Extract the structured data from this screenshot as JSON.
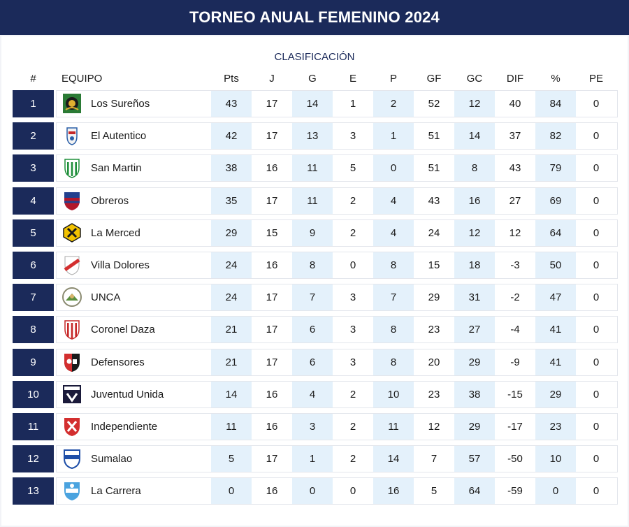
{
  "title": "TORNEO ANUAL FEMENINO 2024",
  "subtitle": "CLASIFICACIÓN",
  "columns": [
    "#",
    "EQUIPO",
    "Pts",
    "J",
    "G",
    "E",
    "P",
    "GF",
    "GC",
    "DIF",
    "%",
    "PE"
  ],
  "colors": {
    "navy": "#1b2a5a",
    "shade": "#e4f1fb",
    "border": "#e3e6ec"
  },
  "teams": [
    {
      "pos": "1",
      "name": "Los Sureños",
      "crest": "los-surenos-crest-icon",
      "pts": "43",
      "j": "17",
      "g": "14",
      "e": "1",
      "p": "2",
      "gf": "52",
      "gc": "12",
      "dif": "40",
      "pct": "84",
      "pe": "0"
    },
    {
      "pos": "2",
      "name": "El Autentico",
      "crest": "el-autentico-crest-icon",
      "pts": "42",
      "j": "17",
      "g": "13",
      "e": "3",
      "p": "1",
      "gf": "51",
      "gc": "14",
      "dif": "37",
      "pct": "82",
      "pe": "0"
    },
    {
      "pos": "3",
      "name": "San Martin",
      "crest": "san-martin-crest-icon",
      "pts": "38",
      "j": "16",
      "g": "11",
      "e": "5",
      "p": "0",
      "gf": "51",
      "gc": "8",
      "dif": "43",
      "pct": "79",
      "pe": "0"
    },
    {
      "pos": "4",
      "name": "Obreros",
      "crest": "obreros-crest-icon",
      "pts": "35",
      "j": "17",
      "g": "11",
      "e": "2",
      "p": "4",
      "gf": "43",
      "gc": "16",
      "dif": "27",
      "pct": "69",
      "pe": "0"
    },
    {
      "pos": "5",
      "name": "La Merced",
      "crest": "la-merced-crest-icon",
      "pts": "29",
      "j": "15",
      "g": "9",
      "e": "2",
      "p": "4",
      "gf": "24",
      "gc": "12",
      "dif": "12",
      "pct": "64",
      "pe": "0"
    },
    {
      "pos": "6",
      "name": "Villa Dolores",
      "crest": "villa-dolores-crest-icon",
      "pts": "24",
      "j": "16",
      "g": "8",
      "e": "0",
      "p": "8",
      "gf": "15",
      "gc": "18",
      "dif": "-3",
      "pct": "50",
      "pe": "0"
    },
    {
      "pos": "7",
      "name": "UNCA",
      "crest": "unca-crest-icon",
      "pts": "24",
      "j": "17",
      "g": "7",
      "e": "3",
      "p": "7",
      "gf": "29",
      "gc": "31",
      "dif": "-2",
      "pct": "47",
      "pe": "0"
    },
    {
      "pos": "8",
      "name": "Coronel Daza",
      "crest": "coronel-daza-crest-icon",
      "pts": "21",
      "j": "17",
      "g": "6",
      "e": "3",
      "p": "8",
      "gf": "23",
      "gc": "27",
      "dif": "-4",
      "pct": "41",
      "pe": "0"
    },
    {
      "pos": "9",
      "name": "Defensores",
      "crest": "defensores-crest-icon",
      "pts": "21",
      "j": "17",
      "g": "6",
      "e": "3",
      "p": "8",
      "gf": "20",
      "gc": "29",
      "dif": "-9",
      "pct": "41",
      "pe": "0"
    },
    {
      "pos": "10",
      "name": "Juventud Unida",
      "crest": "juventud-unida-crest-icon",
      "pts": "14",
      "j": "16",
      "g": "4",
      "e": "2",
      "p": "10",
      "gf": "23",
      "gc": "38",
      "dif": "-15",
      "pct": "29",
      "pe": "0"
    },
    {
      "pos": "11",
      "name": "Independiente",
      "crest": "independiente-crest-icon",
      "pts": "11",
      "j": "16",
      "g": "3",
      "e": "2",
      "p": "11",
      "gf": "12",
      "gc": "29",
      "dif": "-17",
      "pct": "23",
      "pe": "0"
    },
    {
      "pos": "12",
      "name": "Sumalao",
      "crest": "sumalao-crest-icon",
      "pts": "5",
      "j": "17",
      "g": "1",
      "e": "2",
      "p": "14",
      "gf": "7",
      "gc": "57",
      "dif": "-50",
      "pct": "10",
      "pe": "0"
    },
    {
      "pos": "13",
      "name": "La Carrera",
      "crest": "la-carrera-crest-icon",
      "pts": "0",
      "j": "16",
      "g": "0",
      "e": "0",
      "p": "16",
      "gf": "5",
      "gc": "64",
      "dif": "-59",
      "pct": "0",
      "pe": "0"
    }
  ]
}
